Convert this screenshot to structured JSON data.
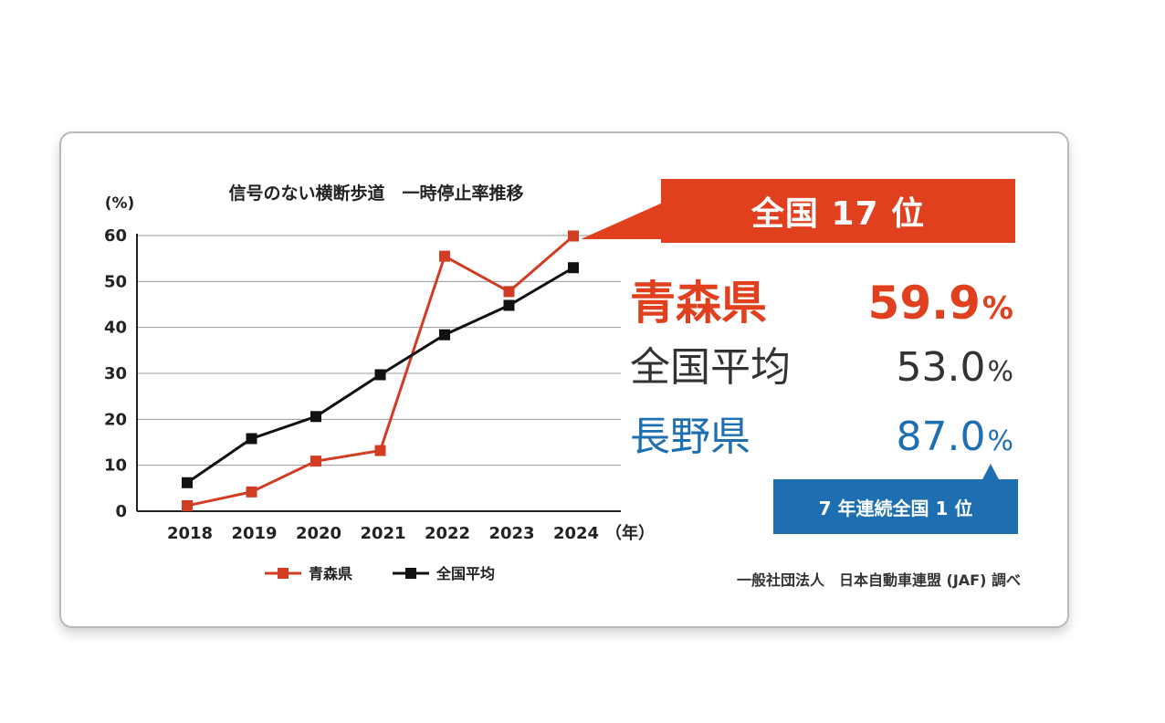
{
  "chart_data": {
    "type": "line",
    "title": "信号のない横断歩道　一時停止率推移",
    "y_unit": "(%)",
    "x_unit": "（年）",
    "ylim": [
      0,
      60
    ],
    "yticks": [
      "0",
      "10",
      "20",
      "30",
      "40",
      "50",
      "60"
    ],
    "categories": [
      "2018",
      "2019",
      "2020",
      "2021",
      "2022",
      "2023",
      "2024"
    ],
    "grid": true,
    "legend_position": "bottom",
    "series": [
      {
        "name": "青森県",
        "color": "#d23c23",
        "values": [
          1.2,
          4.2,
          10.9,
          13.2,
          55.5,
          47.8,
          59.9
        ]
      },
      {
        "name": "全国平均",
        "color": "#111111",
        "values": [
          6.2,
          15.8,
          20.6,
          29.7,
          38.4,
          44.8,
          53.0
        ]
      }
    ]
  },
  "callouts": {
    "rank_label": "全国 17 位",
    "streak_label": "7 年連続全国 1 位"
  },
  "stats": {
    "aomori": {
      "name": "青森県",
      "value": "59.9",
      "unit": "%",
      "color": "#e1401e"
    },
    "national": {
      "name": "全国平均",
      "value": "53.0",
      "unit": "%",
      "color": "#333333"
    },
    "nagano": {
      "name": "長野県",
      "value": "87.0",
      "unit": "%",
      "color": "#1e6fb2"
    }
  },
  "source": "一般社団法人　日本自動車連盟 (JAF) 調べ"
}
